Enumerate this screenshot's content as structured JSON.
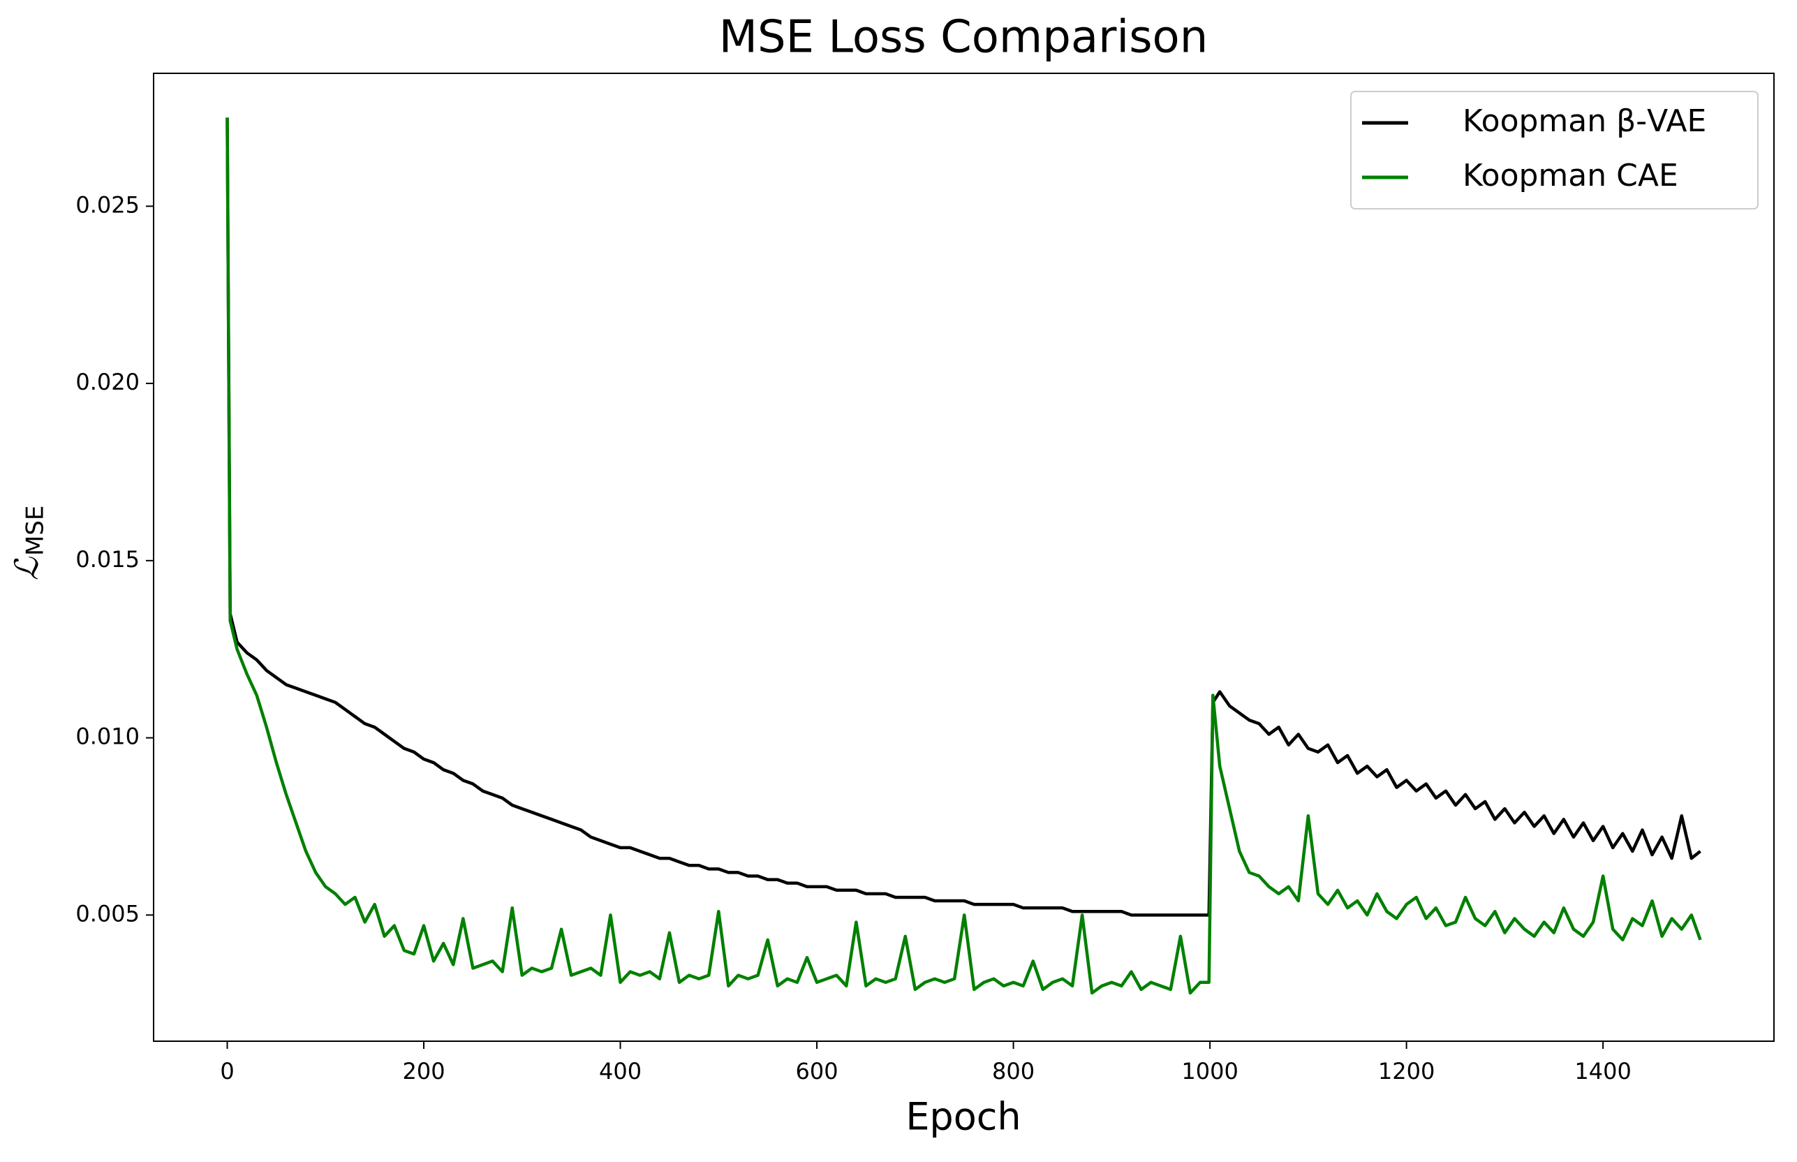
{
  "chart_data": {
    "type": "line",
    "title": "MSE Loss Comparison",
    "xlabel": "Epoch",
    "ylabel": {
      "symbol": "ℒ",
      "subscript": "MSE"
    },
    "legend": "upper right",
    "grid": false,
    "xlim": [
      -74.95,
      1573.95
    ],
    "ylim": [
      0.00144,
      0.02875
    ],
    "xticks": [
      0,
      200,
      400,
      600,
      800,
      1000,
      1200,
      1400
    ],
    "yticks": [
      0.005,
      {
        "value": 0.01,
        "label": "0.010"
      },
      0.015,
      {
        "value": 0.02,
        "label": "0.020"
      },
      0.025
    ],
    "x": [
      0,
      3,
      10,
      20,
      30,
      40,
      50,
      60,
      70,
      80,
      90,
      100,
      110,
      120,
      130,
      140,
      150,
      160,
      170,
      180,
      190,
      200,
      210,
      220,
      230,
      240,
      250,
      260,
      270,
      280,
      290,
      300,
      310,
      320,
      330,
      340,
      350,
      360,
      370,
      380,
      390,
      400,
      410,
      420,
      430,
      440,
      450,
      460,
      470,
      480,
      490,
      500,
      510,
      520,
      530,
      540,
      550,
      560,
      570,
      580,
      590,
      600,
      610,
      620,
      630,
      640,
      650,
      660,
      670,
      680,
      690,
      700,
      710,
      720,
      730,
      740,
      750,
      760,
      770,
      780,
      790,
      800,
      810,
      820,
      830,
      840,
      850,
      860,
      870,
      880,
      890,
      900,
      910,
      920,
      930,
      940,
      950,
      960,
      970,
      980,
      990,
      999,
      1003,
      1010,
      1020,
      1030,
      1040,
      1050,
      1060,
      1070,
      1080,
      1090,
      1100,
      1110,
      1120,
      1130,
      1140,
      1150,
      1160,
      1170,
      1180,
      1190,
      1200,
      1210,
      1220,
      1230,
      1240,
      1250,
      1260,
      1270,
      1280,
      1290,
      1300,
      1310,
      1320,
      1330,
      1340,
      1350,
      1360,
      1370,
      1380,
      1390,
      1400,
      1410,
      1420,
      1430,
      1440,
      1450,
      1460,
      1470,
      1480,
      1490,
      1499
    ],
    "series": [
      {
        "name": "Koopman β-VAE",
        "color": "#000000",
        "values": [
          0.0275,
          0.0135,
          0.0127,
          0.0124,
          0.0122,
          0.0119,
          0.0117,
          0.0115,
          0.0114,
          0.0113,
          0.0112,
          0.0111,
          0.011,
          0.0108,
          0.0106,
          0.0104,
          0.0103,
          0.0101,
          0.0099,
          0.0097,
          0.0096,
          0.0094,
          0.0093,
          0.0091,
          0.009,
          0.0088,
          0.0087,
          0.0085,
          0.0084,
          0.0083,
          0.0081,
          0.008,
          0.0079,
          0.0078,
          0.0077,
          0.0076,
          0.0075,
          0.0074,
          0.0072,
          0.0071,
          0.007,
          0.0069,
          0.0069,
          0.0068,
          0.0067,
          0.0066,
          0.0066,
          0.0065,
          0.0064,
          0.0064,
          0.0063,
          0.0063,
          0.0062,
          0.0062,
          0.0061,
          0.0061,
          0.006,
          0.006,
          0.0059,
          0.0059,
          0.0058,
          0.0058,
          0.0058,
          0.0057,
          0.0057,
          0.0057,
          0.0056,
          0.0056,
          0.0056,
          0.0055,
          0.0055,
          0.0055,
          0.0055,
          0.0054,
          0.0054,
          0.0054,
          0.0054,
          0.0053,
          0.0053,
          0.0053,
          0.0053,
          0.0053,
          0.0052,
          0.0052,
          0.0052,
          0.0052,
          0.0052,
          0.0051,
          0.0051,
          0.0051,
          0.0051,
          0.0051,
          0.0051,
          0.005,
          0.005,
          0.005,
          0.005,
          0.005,
          0.005,
          0.005,
          0.005,
          0.005,
          0.011,
          0.0113,
          0.0109,
          0.0107,
          0.0105,
          0.0104,
          0.0101,
          0.0103,
          0.0098,
          0.0101,
          0.0097,
          0.0096,
          0.0098,
          0.0093,
          0.0095,
          0.009,
          0.0092,
          0.0089,
          0.0091,
          0.0086,
          0.0088,
          0.0085,
          0.0087,
          0.0083,
          0.0085,
          0.0081,
          0.0084,
          0.008,
          0.0082,
          0.0077,
          0.008,
          0.0076,
          0.0079,
          0.0075,
          0.0078,
          0.0073,
          0.0077,
          0.0072,
          0.0076,
          0.0071,
          0.0075,
          0.0069,
          0.0073,
          0.0068,
          0.0074,
          0.0067,
          0.0072,
          0.0066,
          0.0078,
          0.0066,
          0.0068
        ]
      },
      {
        "name": "Koopman CAE",
        "color": "#008000",
        "values": [
          0.0275,
          0.0133,
          0.0125,
          0.0118,
          0.0112,
          0.0103,
          0.0093,
          0.0084,
          0.0076,
          0.0068,
          0.0062,
          0.0058,
          0.0056,
          0.0053,
          0.0055,
          0.0048,
          0.0053,
          0.0044,
          0.0047,
          0.004,
          0.0039,
          0.0047,
          0.0037,
          0.0042,
          0.0036,
          0.0049,
          0.0035,
          0.0036,
          0.0037,
          0.0034,
          0.0052,
          0.0033,
          0.0035,
          0.0034,
          0.0035,
          0.0046,
          0.0033,
          0.0034,
          0.0035,
          0.0033,
          0.005,
          0.0031,
          0.0034,
          0.0033,
          0.0034,
          0.0032,
          0.0045,
          0.0031,
          0.0033,
          0.0032,
          0.0033,
          0.0051,
          0.003,
          0.0033,
          0.0032,
          0.0033,
          0.0043,
          0.003,
          0.0032,
          0.0031,
          0.0038,
          0.0031,
          0.0032,
          0.0033,
          0.003,
          0.0048,
          0.003,
          0.0032,
          0.0031,
          0.0032,
          0.0044,
          0.0029,
          0.0031,
          0.0032,
          0.0031,
          0.0032,
          0.005,
          0.0029,
          0.0031,
          0.0032,
          0.003,
          0.0031,
          0.003,
          0.0037,
          0.0029,
          0.0031,
          0.0032,
          0.003,
          0.005,
          0.0028,
          0.003,
          0.0031,
          0.003,
          0.0034,
          0.0029,
          0.0031,
          0.003,
          0.0029,
          0.0044,
          0.0028,
          0.0031,
          0.0031,
          0.0112,
          0.0092,
          0.008,
          0.0068,
          0.0062,
          0.0061,
          0.0058,
          0.0056,
          0.0058,
          0.0054,
          0.0078,
          0.0056,
          0.0053,
          0.0057,
          0.0052,
          0.0054,
          0.005,
          0.0056,
          0.0051,
          0.0049,
          0.0053,
          0.0055,
          0.0049,
          0.0052,
          0.0047,
          0.0048,
          0.0055,
          0.0049,
          0.0047,
          0.0051,
          0.0045,
          0.0049,
          0.0046,
          0.0044,
          0.0048,
          0.0045,
          0.0052,
          0.0046,
          0.0044,
          0.0048,
          0.0061,
          0.0046,
          0.0043,
          0.0049,
          0.0047,
          0.0054,
          0.0044,
          0.0049,
          0.0046,
          0.005,
          0.0043
        ]
      }
    ]
  }
}
